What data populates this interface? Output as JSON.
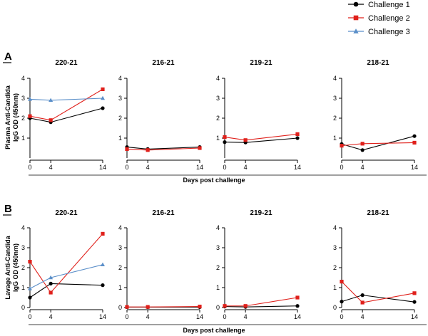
{
  "legend": [
    {
      "name": "Challenge 1",
      "color": "#000000",
      "marker": "circle"
    },
    {
      "name": "Challenge 2",
      "color": "#e0201b",
      "marker": "square"
    },
    {
      "name": "Challenge 3",
      "color": "#5b8fc9",
      "marker": "triangle"
    }
  ],
  "chart_data": [
    {
      "type": "line",
      "panel": "A",
      "title": "220-21",
      "ylabel": "Plasma Anti-Candida IgG OD (450nm)",
      "xlabel": "Days post challenge",
      "xticks": [
        0,
        4,
        14
      ],
      "yticks": [
        1,
        2,
        3,
        4
      ],
      "ylim": [
        0,
        4
      ],
      "series": [
        {
          "name": "Challenge 1",
          "x": [
            0,
            4,
            14
          ],
          "y": [
            2.0,
            1.8,
            2.5
          ]
        },
        {
          "name": "Challenge 2",
          "x": [
            0,
            4,
            14
          ],
          "y": [
            2.1,
            1.9,
            3.45
          ]
        },
        {
          "name": "Challenge 3",
          "x": [
            0,
            4,
            14
          ],
          "y": [
            2.95,
            2.9,
            3.0
          ]
        }
      ]
    },
    {
      "type": "line",
      "panel": "A",
      "title": "216-21",
      "xlabel": "Days post challenge",
      "xticks": [
        0,
        4,
        14
      ],
      "yticks": [
        1,
        2,
        3,
        4
      ],
      "ylim": [
        0,
        4
      ],
      "series": [
        {
          "name": "Challenge 1",
          "x": [
            0,
            4,
            14
          ],
          "y": [
            0.55,
            0.45,
            0.55
          ]
        },
        {
          "name": "Challenge 2",
          "x": [
            0,
            4,
            14
          ],
          "y": [
            0.45,
            0.4,
            0.5
          ]
        }
      ]
    },
    {
      "type": "line",
      "panel": "A",
      "title": "219-21",
      "xlabel": "Days post challenge",
      "xticks": [
        0,
        4,
        14
      ],
      "yticks": [
        1,
        2,
        3,
        4
      ],
      "ylim": [
        0,
        4
      ],
      "series": [
        {
          "name": "Challenge 1",
          "x": [
            0,
            4,
            14
          ],
          "y": [
            0.8,
            0.78,
            1.0
          ]
        },
        {
          "name": "Challenge 2",
          "x": [
            0,
            4,
            14
          ],
          "y": [
            1.05,
            0.9,
            1.2
          ]
        }
      ]
    },
    {
      "type": "line",
      "panel": "A",
      "title": "218-21",
      "xlabel": "Days post challenge",
      "xticks": [
        0,
        4,
        14
      ],
      "yticks": [
        1,
        2,
        3,
        4
      ],
      "ylim": [
        0,
        4
      ],
      "series": [
        {
          "name": "Challenge 1",
          "x": [
            0,
            4,
            14
          ],
          "y": [
            0.7,
            0.4,
            1.1
          ]
        },
        {
          "name": "Challenge 2",
          "x": [
            0,
            4,
            14
          ],
          "y": [
            0.62,
            0.72,
            0.77
          ]
        }
      ]
    },
    {
      "type": "line",
      "panel": "B",
      "title": "220-21",
      "ylabel": "Lavage Anti-Candida IgG OD (450nm)",
      "xlabel": "Days post challenge",
      "xticks": [
        0,
        4,
        14
      ],
      "yticks": [
        0,
        1,
        2,
        3,
        4
      ],
      "ylim": [
        0,
        4
      ],
      "series": [
        {
          "name": "Challenge 1",
          "x": [
            0,
            4,
            14
          ],
          "y": [
            0.5,
            1.2,
            1.12
          ]
        },
        {
          "name": "Challenge 2",
          "x": [
            0,
            4,
            14
          ],
          "y": [
            2.3,
            0.75,
            3.7
          ]
        },
        {
          "name": "Challenge 3",
          "x": [
            0,
            4,
            14
          ],
          "y": [
            0.95,
            1.5,
            2.15
          ]
        }
      ]
    },
    {
      "type": "line",
      "panel": "B",
      "title": "216-21",
      "xlabel": "Days post challenge",
      "xticks": [
        0,
        4,
        14
      ],
      "yticks": [
        0,
        1,
        2,
        3,
        4
      ],
      "ylim": [
        0,
        4
      ],
      "series": [
        {
          "name": "Challenge 1",
          "x": [
            0,
            4,
            14
          ],
          "y": [
            0.02,
            0.02,
            0.02
          ]
        },
        {
          "name": "Challenge 2",
          "x": [
            0,
            4,
            14
          ],
          "y": [
            0.03,
            0.03,
            0.05
          ]
        }
      ]
    },
    {
      "type": "line",
      "panel": "B",
      "title": "219-21",
      "xlabel": "Days post challenge",
      "xticks": [
        0,
        4,
        14
      ],
      "yticks": [
        0,
        1,
        2,
        3,
        4
      ],
      "ylim": [
        0,
        4
      ],
      "series": [
        {
          "name": "Challenge 1",
          "x": [
            0,
            4,
            14
          ],
          "y": [
            0.05,
            0.03,
            0.08
          ]
        },
        {
          "name": "Challenge 2",
          "x": [
            0,
            4,
            14
          ],
          "y": [
            0.08,
            0.08,
            0.5
          ]
        }
      ]
    },
    {
      "type": "line",
      "panel": "B",
      "title": "218-21",
      "xlabel": "Days post challenge",
      "xticks": [
        0,
        4,
        14
      ],
      "yticks": [
        0,
        1,
        2,
        3,
        4
      ],
      "ylim": [
        0,
        4
      ],
      "series": [
        {
          "name": "Challenge 1",
          "x": [
            0,
            4,
            14
          ],
          "y": [
            0.3,
            0.62,
            0.28
          ]
        },
        {
          "name": "Challenge 2",
          "x": [
            0,
            4,
            14
          ],
          "y": [
            1.3,
            0.25,
            0.72
          ]
        }
      ]
    }
  ]
}
